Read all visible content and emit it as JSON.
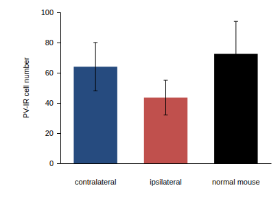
{
  "chart_data": {
    "type": "bar",
    "y_label": "PV-IR cell number",
    "categories": [
      "contralateral",
      "ipsilateral",
      "normal mouse"
    ],
    "values": [
      64,
      43.5,
      72.5
    ],
    "errors": [
      16,
      11.5,
      21.5
    ],
    "colors": [
      "#264b7f",
      "#c0504d",
      "#000000"
    ],
    "ylim": [
      0,
      100
    ],
    "yticks": [
      0,
      20,
      40,
      60,
      80,
      100
    ],
    "grid": false
  }
}
